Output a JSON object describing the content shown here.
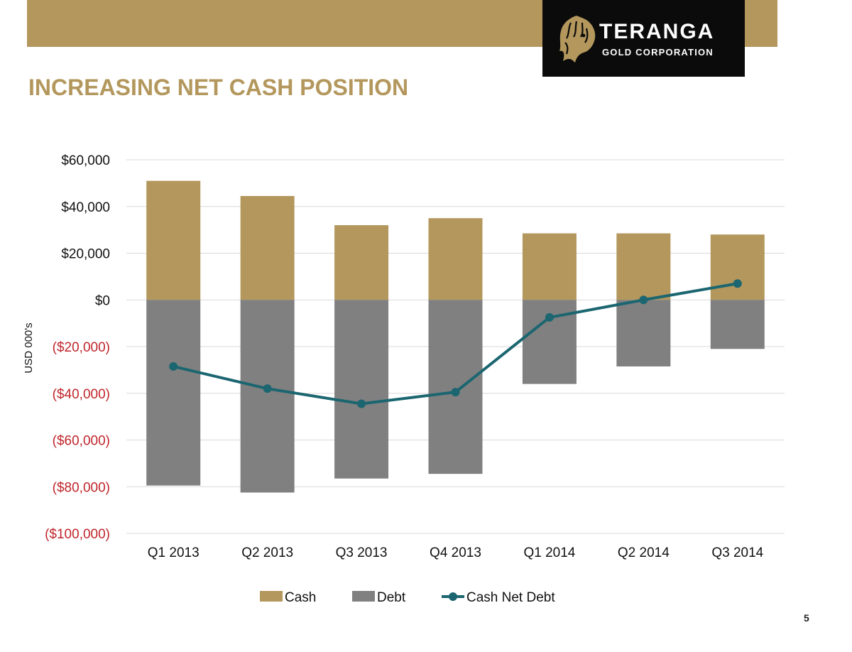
{
  "header": {
    "logo_name": "TERANGA",
    "logo_subtitle": "GOLD CORPORATION",
    "title": "INCREASING NET CASH POSITION"
  },
  "colors": {
    "gold": "#b3975c",
    "debt_gray": "#808080",
    "line_teal": "#1b6670",
    "negative_label": "#c0262c",
    "logo_background": "#0b0b0b"
  },
  "page_number": "5",
  "chart_data": {
    "type": "bar",
    "stacked": true,
    "categories": [
      "Q1 2013",
      "Q2 2013",
      "Q3 2013",
      "Q4 2013",
      "Q1 2014",
      "Q2 2014",
      "Q3 2014"
    ],
    "series": [
      {
        "name": "Cash",
        "type": "bar",
        "color": "#b3975c",
        "values": [
          51000,
          44500,
          32000,
          35000,
          28500,
          28500,
          28000
        ]
      },
      {
        "name": "Debt",
        "type": "bar",
        "color": "#808080",
        "values": [
          -79500,
          -82500,
          -76500,
          -74500,
          -36000,
          -28500,
          -21000
        ]
      },
      {
        "name": "Cash Net Debt",
        "type": "line",
        "color": "#1b6670",
        "values": [
          -28500,
          -38000,
          -44500,
          -39500,
          -7500,
          0,
          7000
        ]
      }
    ],
    "ylabel": "USD 000's",
    "ylim": [
      -100000,
      60000
    ],
    "yticks": [
      60000,
      40000,
      20000,
      0,
      -20000,
      -40000,
      -60000,
      -80000,
      -100000
    ],
    "ytick_labels": [
      "$60,000",
      "$40,000",
      "$20,000",
      "$0",
      "($20,000)",
      "($40,000)",
      "($60,000)",
      "($80,000)",
      "($100,000)"
    ],
    "grid": true,
    "legend": "bottom"
  }
}
